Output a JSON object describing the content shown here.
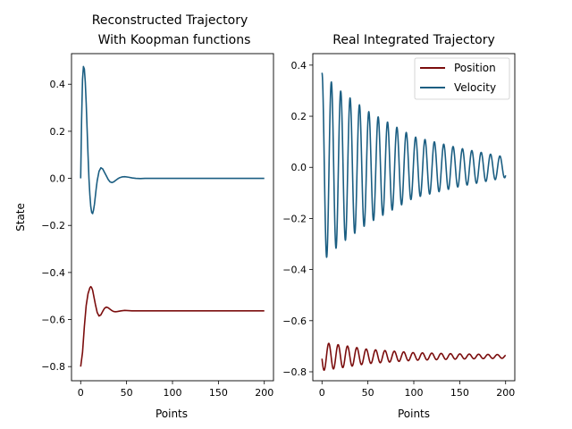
{
  "chart_data": [
    {
      "type": "line",
      "title_lines": [
        "Reconstructed Trajectory",
        "With Koopman functions"
      ],
      "xlabel": "Points",
      "ylabel": "State",
      "xlim": [
        -10,
        210
      ],
      "ylim": [
        -0.86,
        0.53
      ],
      "xticks": [
        0,
        50,
        100,
        150,
        200
      ],
      "yticks": [
        -0.8,
        -0.6,
        -0.4,
        -0.2,
        0.0,
        0.2,
        0.4
      ],
      "grid": false,
      "series": [
        {
          "color": "#1b5e82",
          "x": [
            0,
            1,
            2,
            3,
            4,
            5,
            6,
            7,
            8,
            9,
            10,
            11,
            12,
            13,
            14,
            15,
            16,
            17,
            18,
            20,
            22,
            24,
            26,
            28,
            30,
            32,
            34,
            36,
            38,
            40,
            42,
            45,
            48,
            52,
            56,
            60,
            65,
            70,
            80,
            100,
            150,
            200
          ],
          "y": [
            0.0,
            0.25,
            0.42,
            0.475,
            0.465,
            0.41,
            0.32,
            0.21,
            0.1,
            0.0,
            -0.07,
            -0.12,
            -0.145,
            -0.15,
            -0.135,
            -0.11,
            -0.075,
            -0.04,
            -0.01,
            0.03,
            0.045,
            0.04,
            0.025,
            0.01,
            -0.005,
            -0.015,
            -0.018,
            -0.015,
            -0.009,
            -0.003,
            0.002,
            0.006,
            0.007,
            0.005,
            0.002,
            0.0,
            -0.001,
            0.0,
            0.0,
            0.0,
            0.0,
            0.0
          ]
        },
        {
          "color": "#7b0d0d",
          "x": [
            0,
            2,
            4,
            6,
            8,
            10,
            11,
            12,
            13,
            14,
            16,
            18,
            20,
            22,
            24,
            26,
            28,
            30,
            32,
            34,
            36,
            38,
            40,
            44,
            48,
            52,
            56,
            60,
            70,
            80,
            100,
            150,
            200
          ],
          "y": [
            -0.8,
            -0.74,
            -0.63,
            -0.54,
            -0.49,
            -0.465,
            -0.46,
            -0.465,
            -0.475,
            -0.495,
            -0.535,
            -0.57,
            -0.585,
            -0.58,
            -0.565,
            -0.552,
            -0.547,
            -0.55,
            -0.556,
            -0.562,
            -0.566,
            -0.567,
            -0.566,
            -0.563,
            -0.561,
            -0.562,
            -0.563,
            -0.563,
            -0.563,
            -0.563,
            -0.563,
            -0.563,
            -0.563
          ]
        }
      ]
    },
    {
      "type": "line",
      "title_lines": [
        "Real Integrated Trajectory"
      ],
      "xlabel": "Points",
      "ylabel": "",
      "xlim": [
        -10,
        210
      ],
      "ylim": [
        -0.835,
        0.445
      ],
      "xticks": [
        0,
        50,
        100,
        150,
        200
      ],
      "yticks": [
        -0.8,
        -0.6,
        -0.4,
        -0.2,
        0.0,
        0.2,
        0.4
      ],
      "grid": false,
      "legend_position": "top-right",
      "legend": [
        "Position",
        "Velocity"
      ],
      "series": [
        {
          "name": "Position",
          "color": "#7b0d0d",
          "offset": -0.74,
          "amplitude": [
            [
              0,
              0.055
            ],
            [
              20,
              0.045
            ],
            [
              50,
              0.028
            ],
            [
              100,
              0.015
            ],
            [
              150,
              0.01
            ],
            [
              200,
              0.007
            ]
          ],
          "period": 10.2,
          "phase": 3.3,
          "x_range": [
            0,
            200
          ]
        },
        {
          "name": "Velocity",
          "color": "#1b5e82",
          "offset": 0.0,
          "amplitude": [
            [
              0,
              0.37
            ],
            [
              20,
              0.3
            ],
            [
              50,
              0.22
            ],
            [
              100,
              0.12
            ],
            [
              150,
              0.075
            ],
            [
              200,
              0.04
            ]
          ],
          "period": 10.2,
          "phase": 1.57,
          "x_range": [
            0,
            200
          ]
        }
      ]
    }
  ]
}
